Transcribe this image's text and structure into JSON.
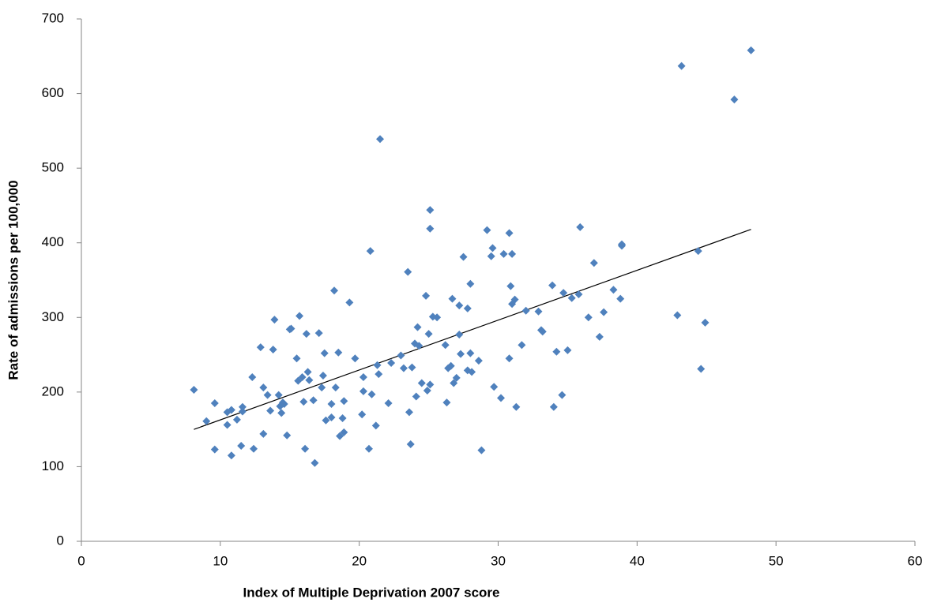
{
  "chart_data": {
    "type": "scatter",
    "x_label": "Index of Multiple Deprivation  2007 score",
    "y_label": "Rate of admissions per 100,000",
    "color": "#4f81bd",
    "xlim": [
      0,
      60
    ],
    "xticks": [
      0,
      10,
      20,
      30,
      40,
      50,
      60
    ],
    "ylim": [
      0,
      700
    ],
    "yticks": [
      0,
      100,
      200,
      300,
      400,
      500,
      600,
      700
    ],
    "grid": false,
    "x": [
      8.1,
      9.0,
      9.6,
      9.6,
      10.5,
      10.5,
      10.8,
      10.8,
      11.2,
      11.6,
      11.6,
      11.5,
      12.3,
      12.4,
      12.9,
      13.1,
      13.1,
      13.4,
      13.6,
      13.8,
      13.9,
      14.2,
      14.3,
      14.4,
      14.5,
      14.6,
      14.8,
      15.0,
      15.1,
      15.5,
      15.6,
      15.7,
      15.9,
      16.0,
      16.1,
      16.2,
      16.3,
      16.4,
      16.7,
      16.8,
      17.1,
      17.3,
      17.4,
      17.5,
      17.6,
      18.0,
      18.0,
      18.2,
      18.3,
      18.5,
      18.6,
      18.8,
      18.9,
      18.9,
      19.3,
      19.7,
      20.2,
      20.3,
      20.3,
      20.7,
      20.8,
      20.9,
      21.2,
      21.3,
      21.4,
      21.5,
      22.1,
      22.3,
      23.0,
      23.2,
      23.5,
      23.6,
      23.7,
      23.8,
      24.0,
      24.1,
      24.2,
      24.3,
      24.5,
      24.8,
      24.9,
      25.0,
      25.1,
      25.1,
      25.1,
      25.3,
      25.6,
      26.2,
      26.3,
      26.4,
      26.6,
      26.7,
      26.8,
      27.0,
      27.2,
      27.2,
      27.3,
      27.5,
      27.8,
      27.8,
      28.0,
      28.0,
      28.1,
      28.6,
      28.8,
      29.2,
      29.5,
      29.6,
      29.7,
      30.2,
      30.4,
      30.8,
      30.8,
      30.9,
      31.0,
      31.0,
      31.2,
      31.3,
      31.7,
      32.0,
      32.9,
      33.1,
      33.2,
      33.9,
      34.0,
      34.2,
      34.6,
      34.7,
      35.0,
      35.3,
      35.8,
      35.9,
      36.5,
      36.9,
      37.3,
      37.6,
      38.3,
      38.8,
      38.9,
      38.9,
      42.9,
      43.2,
      44.4,
      44.6,
      44.9,
      47.0,
      48.2
    ],
    "values": [
      203,
      161,
      185,
      123,
      173,
      156,
      115,
      176,
      163,
      180,
      174,
      128,
      220,
      124,
      260,
      206,
      144,
      196,
      175,
      257,
      297,
      196,
      181,
      172,
      186,
      184,
      142,
      284,
      285,
      245,
      215,
      302,
      220,
      187,
      124,
      278,
      227,
      216,
      189,
      105,
      279,
      206,
      222,
      252,
      162,
      184,
      166,
      336,
      206,
      253,
      141,
      165,
      146,
      188,
      320,
      245,
      170,
      201,
      220,
      124,
      389,
      197,
      155,
      236,
      224,
      539,
      185,
      239,
      249,
      232,
      361,
      173,
      130,
      233,
      265,
      194,
      287,
      262,
      212,
      329,
      202,
      278,
      444,
      419,
      210,
      301,
      300,
      263,
      186,
      232,
      235,
      325,
      212,
      219,
      316,
      277,
      251,
      381,
      229,
      312,
      345,
      252,
      227,
      242,
      122,
      417,
      382,
      393,
      207,
      192,
      385,
      413,
      245,
      342,
      385,
      318,
      324,
      180,
      263,
      309,
      308,
      283,
      281,
      343,
      180,
      254,
      196,
      333,
      256,
      326,
      331,
      421,
      300,
      373,
      274,
      307,
      337,
      325,
      396,
      398,
      303,
      637,
      389,
      231,
      293,
      592,
      658
    ],
    "trendline": {
      "color": "#000000",
      "x": [
        8.1,
        48.2
      ],
      "values": [
        150,
        418
      ]
    }
  }
}
